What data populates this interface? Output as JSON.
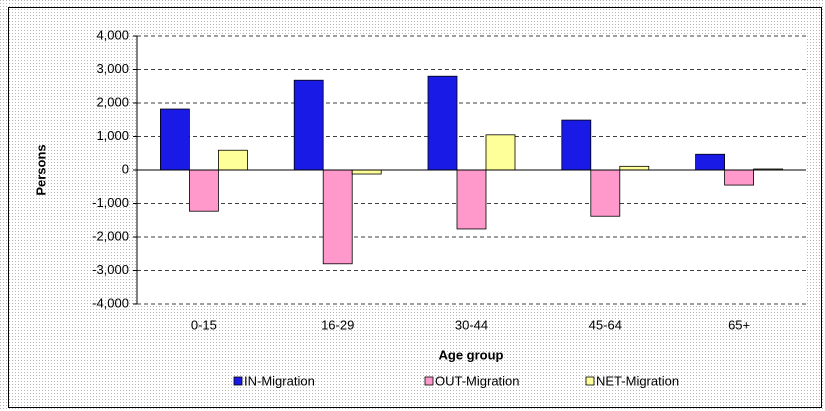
{
  "chart_data": {
    "type": "bar",
    "x_label": "Age group",
    "y_label": "Persons",
    "categories": [
      "0-15",
      "16-29",
      "30-44",
      "45-64",
      "65+"
    ],
    "series": [
      {
        "name": "IN-Migration",
        "color": "#1a1ae6",
        "values": [
          1820,
          2680,
          2800,
          1490,
          470
        ]
      },
      {
        "name": "OUT-Migration",
        "color": "#ff99cc",
        "values": [
          -1230,
          -2800,
          -1760,
          -1380,
          -450
        ]
      },
      {
        "name": "NET-Migration",
        "color": "#ffff99",
        "values": [
          590,
          -120,
          1050,
          110,
          30
        ]
      }
    ],
    "ylim": [
      -4000,
      4000
    ],
    "yticks": [
      {
        "value": -4000,
        "label": "-4,000"
      },
      {
        "value": -3000,
        "label": "-3,000"
      },
      {
        "value": -2000,
        "label": "-2,000"
      },
      {
        "value": -1000,
        "label": "-1,000"
      },
      0,
      {
        "value": 1000,
        "label": "1,000"
      },
      {
        "value": 2000,
        "label": "2,000"
      },
      {
        "value": 3000,
        "label": "3,000"
      },
      {
        "value": 4000,
        "label": "4,000"
      }
    ],
    "grid": true,
    "legend": "bottom"
  }
}
